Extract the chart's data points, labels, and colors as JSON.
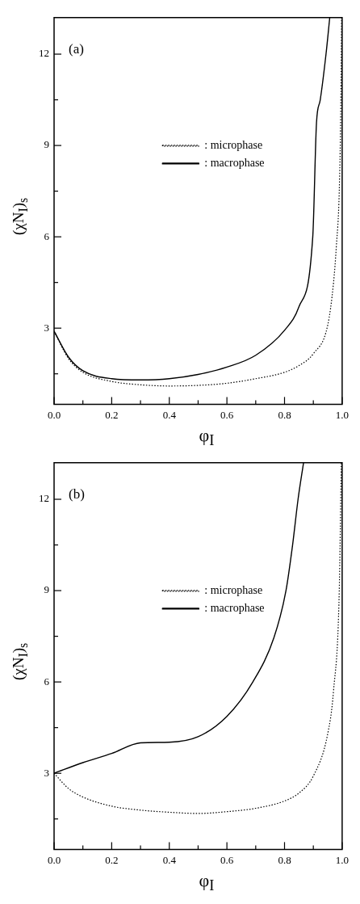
{
  "chart_data": [
    {
      "type": "line",
      "annotations": [
        "(a)"
      ],
      "xlabel": "φ$_{I}$",
      "ylabel": "(χN$_{I}$)$_{s}$",
      "xlim": [
        0,
        1
      ],
      "ylim": [
        0.5,
        13.2
      ],
      "xticks": [
        {
          "value": 0,
          "label": "0.0"
        },
        {
          "value": 0.1,
          "label": null
        },
        {
          "value": 0.2,
          "label": "0.2"
        },
        {
          "value": 0.3,
          "label": null
        },
        {
          "value": 0.4,
          "label": "0.4"
        },
        {
          "value": 0.5,
          "label": null
        },
        {
          "value": 0.6,
          "label": "0.6"
        },
        {
          "value": 0.7,
          "label": null
        },
        {
          "value": 0.8,
          "label": "0.8"
        },
        {
          "value": 0.9,
          "label": null
        },
        {
          "value": 1,
          "label": "1.0"
        }
      ],
      "yticks": [
        {
          "value": 1.5,
          "label": null
        },
        3,
        {
          "value": 4.5,
          "label": null
        },
        6,
        {
          "value": 7.5,
          "label": null
        },
        9,
        {
          "value": 10.5,
          "label": null
        },
        12
      ],
      "legend": "top",
      "grid": false,
      "marker": "none",
      "series": [
        {
          "name": ": microphase",
          "color": "#000000",
          "line_style": "dotted",
          "x": [
            0,
            0.05,
            0.1,
            0.2,
            0.3,
            0.4,
            0.5,
            0.6,
            0.7,
            0.8,
            0.85,
            0.9,
            0.95,
            0.97,
            0.98,
            0.99,
            0.995,
            0.998
          ],
          "values": [
            2.9,
            2.0,
            1.55,
            1.25,
            1.14,
            1.1,
            1.12,
            1.19,
            1.34,
            1.55,
            1.77,
            2.16,
            3.1,
            4.48,
            5.7,
            7.5,
            10,
            13.2
          ]
        },
        {
          "name": ": macrophase",
          "color": "#000000",
          "line_style": "solid",
          "x": [
            0,
            0.05,
            0.1,
            0.2,
            0.3,
            0.4,
            0.5,
            0.6,
            0.7,
            0.8,
            0.85,
            0.898,
            0.911,
            0.924,
            0.944,
            0.957
          ],
          "values": [
            2.9,
            2.05,
            1.6,
            1.34,
            1.3,
            1.34,
            1.48,
            1.72,
            2.11,
            2.93,
            3.7,
            6,
            9.75,
            10.5,
            12,
            13.2
          ]
        }
      ]
    },
    {
      "type": "line",
      "annotations": [
        "(b)"
      ],
      "xlabel": "φ$_{I}$",
      "ylabel": "(χN$_{I}$)$_{s}$",
      "xlim": [
        0,
        1
      ],
      "ylim": [
        0.5,
        13.2
      ],
      "xticks": [
        {
          "value": 0,
          "label": "0.0"
        },
        {
          "value": 0.1,
          "label": null
        },
        {
          "value": 0.2,
          "label": "0.2"
        },
        {
          "value": 0.3,
          "label": null
        },
        {
          "value": 0.4,
          "label": "0.4"
        },
        {
          "value": 0.5,
          "label": null
        },
        {
          "value": 0.6,
          "label": "0.6"
        },
        {
          "value": 0.7,
          "label": null
        },
        {
          "value": 0.8,
          "label": "0.8"
        },
        {
          "value": 0.9,
          "label": null
        },
        {
          "value": 1,
          "label": "1.0"
        }
      ],
      "yticks": [
        {
          "value": 1.5,
          "label": null
        },
        3,
        {
          "value": 4.5,
          "label": null
        },
        6,
        {
          "value": 7.5,
          "label": null
        },
        9,
        {
          "value": 10.5,
          "label": null
        },
        12
      ],
      "legend": "top",
      "grid": false,
      "marker": "none",
      "series": [
        {
          "name": ": microphase",
          "color": "#000000",
          "line_style": "dotted",
          "x": [
            0,
            0.05,
            0.1,
            0.2,
            0.3,
            0.4,
            0.5,
            0.6,
            0.7,
            0.8,
            0.85,
            0.9,
            0.95,
            0.97,
            0.99,
            0.997
          ],
          "values": [
            3.0,
            2.5,
            2.22,
            1.92,
            1.79,
            1.72,
            1.68,
            1.74,
            1.85,
            2.09,
            2.35,
            2.91,
            4.3,
            5.7,
            9,
            13.2
          ]
        },
        {
          "name": ": macrophase",
          "color": "#000000",
          "line_style": "solid",
          "x": [
            0,
            0.1,
            0.2,
            0.3,
            0.4,
            0.5,
            0.6,
            0.69,
            0.763,
            0.805,
            0.828,
            0.847,
            0.866
          ],
          "values": [
            3.0,
            3.35,
            3.65,
            4.0,
            4.02,
            4.2,
            4.87,
            6,
            7.45,
            9,
            10.5,
            12,
            13.2
          ]
        }
      ]
    }
  ]
}
